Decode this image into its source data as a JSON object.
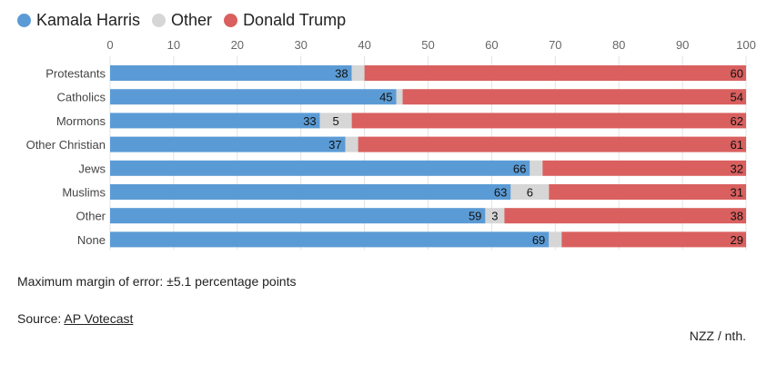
{
  "legend": [
    {
      "label": "Kamala Harris",
      "color": "#5b9bd5"
    },
    {
      "label": "Other",
      "color": "#d6d6d6"
    },
    {
      "label": "Donald Trump",
      "color": "#d9605f"
    }
  ],
  "chart_data": {
    "type": "bar",
    "orientation": "horizontal",
    "stacked": true,
    "xlim": [
      0,
      100
    ],
    "xticks": [
      "0",
      "10",
      "20",
      "30",
      "40",
      "50",
      "60",
      "70",
      "80",
      "90",
      "100"
    ],
    "categories": [
      "Protestants",
      "Catholics",
      "Mormons",
      "Other Christian",
      "Jews",
      "Muslims",
      "Other",
      "None"
    ],
    "series": [
      {
        "name": "Kamala Harris",
        "color": "#5b9bd5",
        "values": [
          38,
          45,
          33,
          37,
          66,
          63,
          59,
          69
        ],
        "labels": [
          "38",
          "45",
          "33",
          "37",
          "66",
          "63",
          "59",
          "69"
        ]
      },
      {
        "name": "Other",
        "color": "#d6d6d6",
        "values": [
          2,
          1,
          5,
          2,
          2,
          6,
          3,
          2
        ],
        "labels": [
          "",
          "",
          "5",
          "",
          "",
          "6",
          "3",
          ""
        ]
      },
      {
        "name": "Donald Trump",
        "color": "#d9605f",
        "values": [
          60,
          54,
          62,
          61,
          32,
          31,
          38,
          29
        ],
        "labels": [
          "60",
          "54",
          "62",
          "61",
          "32",
          "31",
          "38",
          "29"
        ]
      }
    ],
    "grid": true,
    "legend_position": "top-left"
  },
  "footer": {
    "note": "Maximum margin of error: ±5.1 percentage points",
    "source_prefix": "Source: ",
    "source_link": "AP Votecast",
    "credit": "NZZ / nth."
  }
}
